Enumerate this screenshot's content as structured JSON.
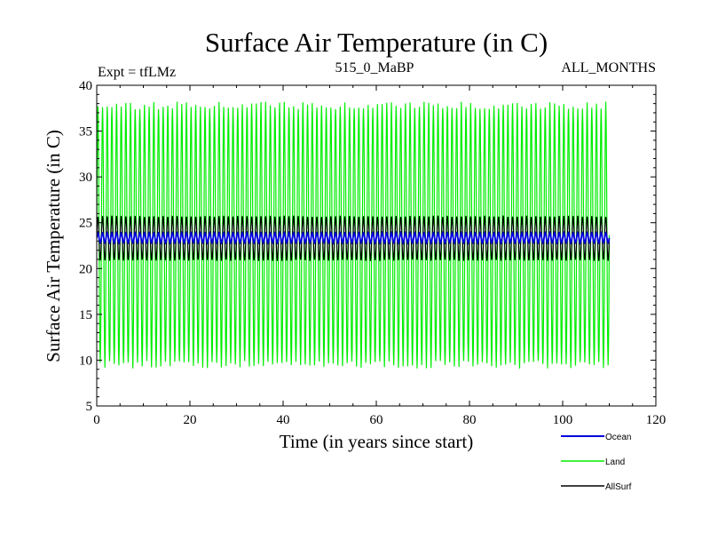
{
  "chart_data": {
    "type": "line",
    "title": "Surface Air Temperature (in C)",
    "subtitle_left": "Expt = tfLMz",
    "subtitle_center": "515_0_MaBP",
    "subtitle_right": "ALL_MONTHS",
    "xlabel": "Time (in years since start)",
    "ylabel": "Surface Air Temperature (in C)",
    "xlim": [
      0,
      120
    ],
    "ylim": [
      5,
      40
    ],
    "x_ticks": [
      0,
      20,
      40,
      60,
      80,
      100,
      120
    ],
    "y_ticks": [
      5,
      10,
      15,
      20,
      25,
      30,
      35,
      40
    ],
    "x_range_years": [
      0,
      110
    ],
    "cycles_per_year": 1,
    "series": [
      {
        "name": "Land",
        "color": "#00ee00",
        "mean": 23.3,
        "seasonal_max_approx": 37.8,
        "seasonal_min_approx": 9.5
      },
      {
        "name": "AllSurf",
        "color": "#000000",
        "mean": 23.3,
        "seasonal_max_approx": 25.7,
        "seasonal_min_approx": 20.9
      },
      {
        "name": "Ocean",
        "color": "#0000dd",
        "mean": 23.3,
        "seasonal_max_approx": 23.9,
        "seasonal_min_approx": 22.8
      }
    ],
    "legend": [
      {
        "name": "Ocean",
        "color": "#0000dd"
      },
      {
        "name": "Land",
        "color": "#00ee00"
      },
      {
        "name": "AllSurf",
        "color": "#000000"
      }
    ]
  }
}
